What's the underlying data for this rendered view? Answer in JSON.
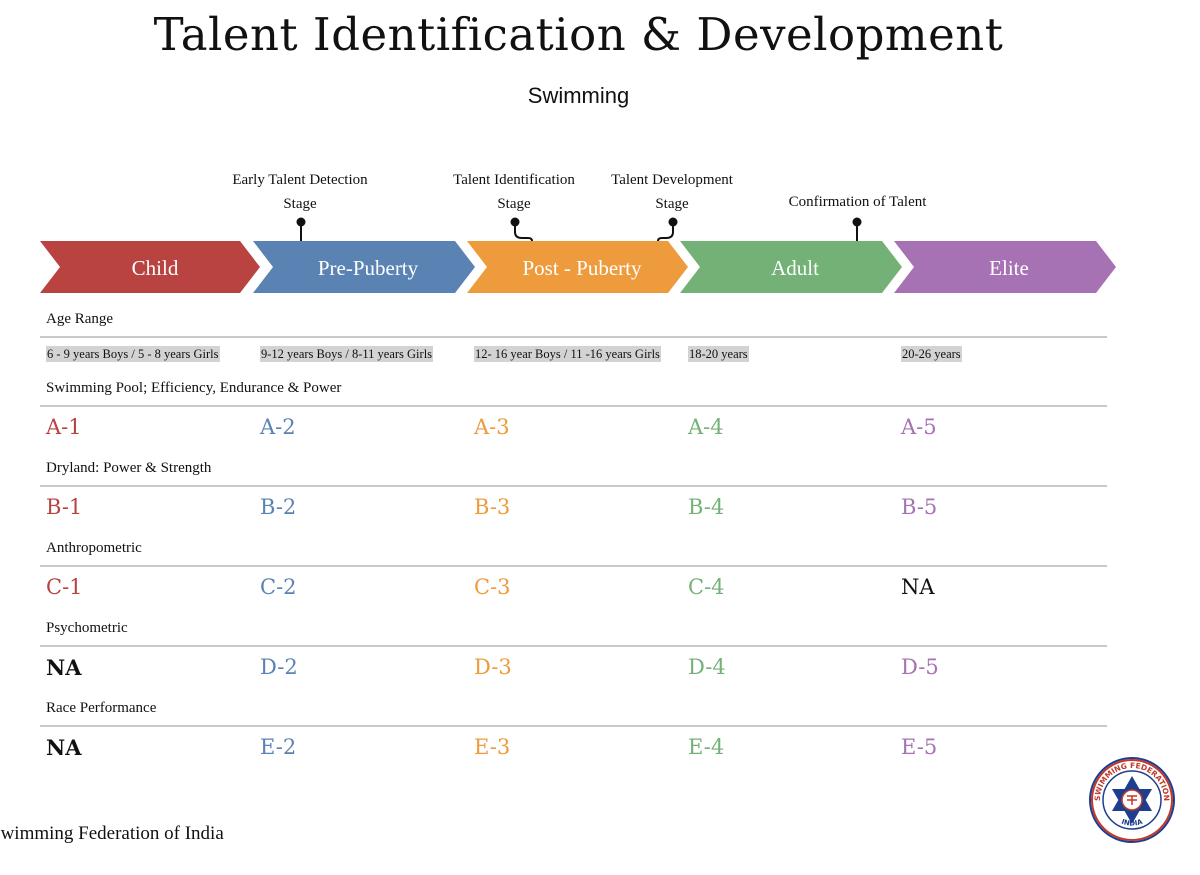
{
  "title": "Talent Identification & Development",
  "subtitle": "Swimming",
  "markers": [
    {
      "line1": "Early Talent Detection",
      "line2": "Stage"
    },
    {
      "line1": "Talent Identification",
      "line2": "Stage"
    },
    {
      "line1": "Talent Development",
      "line2": "Stage"
    },
    {
      "line1": "Confirmation of Talent",
      "line2": ""
    }
  ],
  "stages": [
    {
      "label": "Child",
      "color": "#b84340"
    },
    {
      "label": "Pre-Puberty",
      "color": "#5a83b4"
    },
    {
      "label": "Post - Puberty",
      "color": "#ed9b3c"
    },
    {
      "label": "Adult",
      "color": "#73b176"
    },
    {
      "label": "Elite",
      "color": "#a672b3"
    }
  ],
  "age_range": {
    "label": "Age Range",
    "values": [
      "6 - 9 years Boys / 5 - 8 years Girls",
      "9-12 years Boys / 8-11 years Girls",
      "12- 16 year Boys / 11 -16 years  Girls",
      "18-20 years",
      "20-26 years"
    ]
  },
  "rows": [
    {
      "label": "Swimming Pool; Efficiency, Endurance &  Power",
      "codes": [
        "A-1",
        "A-2",
        "A-3",
        "A-4",
        "A-5"
      ]
    },
    {
      "label": "Dryland: Power & Strength",
      "codes": [
        "B-1",
        "B-2",
        "B-3",
        "B-4",
        "B-5"
      ]
    },
    {
      "label": "Anthropometric",
      "codes": [
        "C-1",
        "C-2",
        "C-3",
        "C-4",
        "NA"
      ]
    },
    {
      "label": "Psychometric",
      "codes": [
        "NA",
        "D-2",
        "D-3",
        "D-4",
        "D-5"
      ]
    },
    {
      "label": "Race Performance",
      "codes": [
        "NA",
        "E-2",
        "E-3",
        "E-4",
        "E-5"
      ]
    }
  ],
  "footer": "Swimming Federation of India",
  "logo_text": {
    "top": "SWIMMING FEDERATION",
    "bottom": "INDIA"
  }
}
